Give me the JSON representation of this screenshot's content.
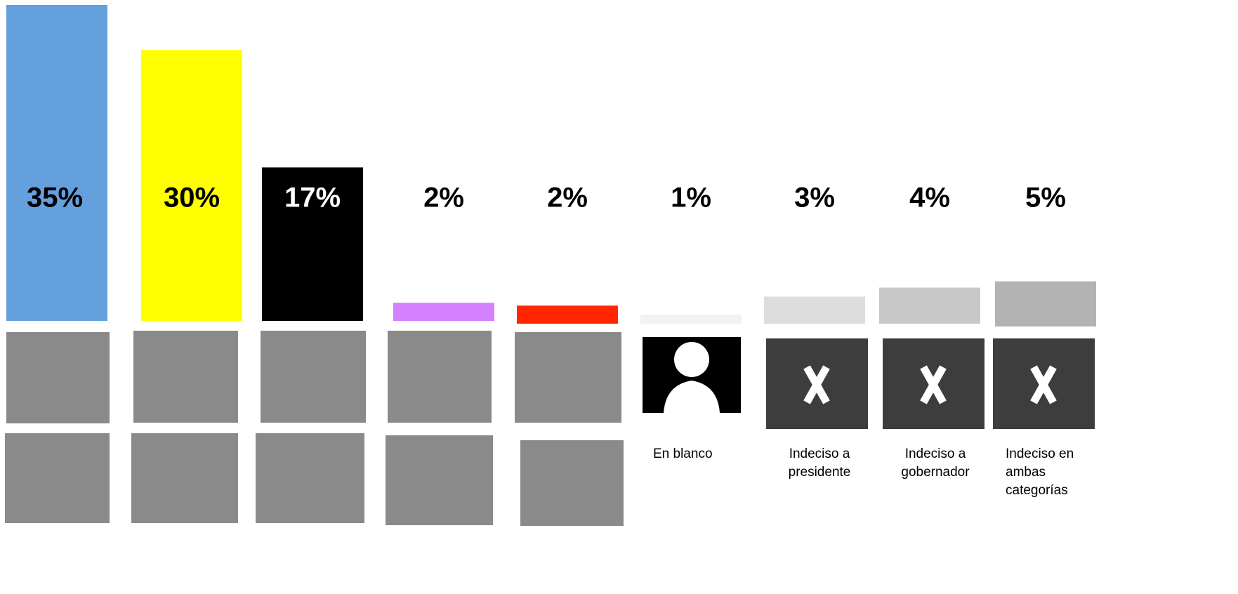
{
  "chart_data": {
    "type": "bar",
    "categories": [
      null,
      null,
      null,
      null,
      null,
      "En blanco",
      "Indeciso a presidente",
      "Indeciso a gobernador",
      "Indeciso en ambas categorías"
    ],
    "values": [
      35,
      30,
      17,
      2,
      2,
      1,
      3,
      4,
      5
    ],
    "value_labels": [
      "35%",
      "30%",
      "17%",
      "2%",
      "2%",
      "1%",
      "3%",
      "4%",
      "5%"
    ],
    "colors": [
      "#64a0de",
      "#ffff00",
      "#000000",
      "#d580ff",
      "#ff2600",
      "#f2f2f2",
      "#dddddd",
      "#c8c8c8",
      "#b3b3b3"
    ]
  }
}
